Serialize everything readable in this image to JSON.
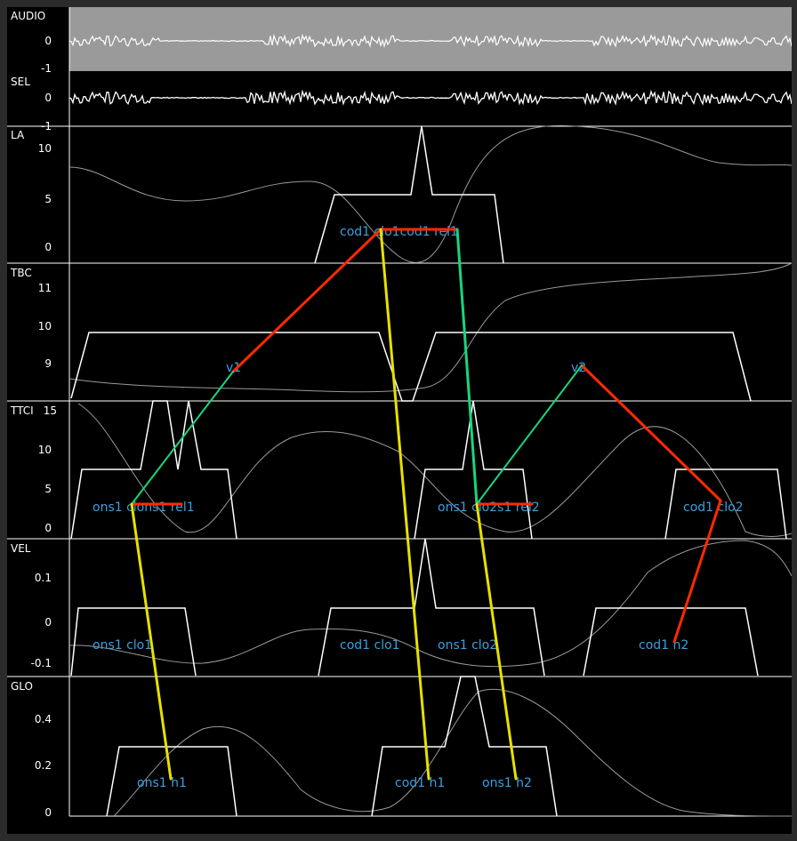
{
  "tracks": [
    {
      "name": "AUDIO",
      "ticks": [
        "0",
        "-1"
      ]
    },
    {
      "name": "SEL",
      "ticks": [
        "0",
        "-1"
      ]
    },
    {
      "name": "LA",
      "ticks": [
        "10",
        "5",
        "0"
      ]
    },
    {
      "name": "TBC",
      "ticks": [
        "11",
        "10",
        "9"
      ]
    },
    {
      "name": "TTCI",
      "ticks": [
        "15",
        "10",
        "5",
        "0"
      ]
    },
    {
      "name": "VEL",
      "ticks": [
        "0.1",
        "0",
        "-0.1"
      ]
    },
    {
      "name": "GLO",
      "ticks": [
        "0.4",
        "0.2",
        "0"
      ]
    }
  ],
  "events": [
    {
      "text": "cod1 clo1cod1 rel1"
    },
    {
      "text": "v1"
    },
    {
      "text": "v2"
    },
    {
      "text": "ons1 clons1 rel1"
    },
    {
      "text": "ons1 clo2s1 rel2"
    },
    {
      "text": "cod1 clo2"
    },
    {
      "text": "ons1 clo1"
    },
    {
      "text": "cod1 clo1"
    },
    {
      "text": "ons1 clo2"
    },
    {
      "text": "cod1 n2"
    },
    {
      "text": "ons1 h1"
    },
    {
      "text": "cod1 h1"
    },
    {
      "text": "ons1 h2"
    }
  ],
  "colors": {
    "background": "#000000",
    "waveform": "#ffffff",
    "audio_band": "#9a9a9a",
    "gestures": "#ffffff",
    "curves": "#9a9a9a",
    "event_labels": "#3aa0e0",
    "timing_red": "#ff2a00",
    "timing_green": "#17d680",
    "timing_yellow": "#e8e000"
  }
}
